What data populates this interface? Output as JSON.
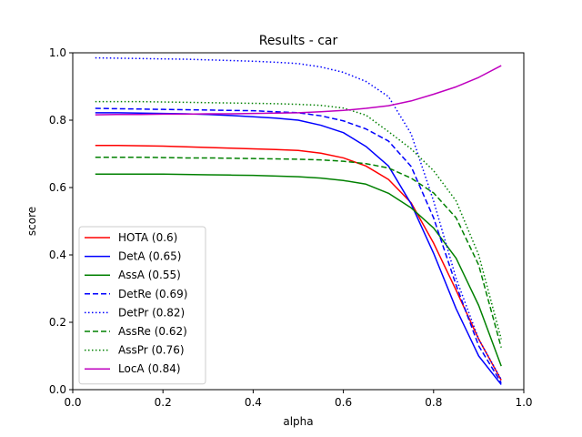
{
  "chart_data": {
    "type": "line",
    "title": "Results - car",
    "xlabel": "alpha",
    "ylabel": "score",
    "xlim": [
      0.0,
      1.0
    ],
    "ylim": [
      0.0,
      1.0
    ],
    "xticks": [
      "0.0",
      "0.2",
      "0.4",
      "0.6",
      "0.8",
      "1.0"
    ],
    "yticks": [
      "0.0",
      "0.2",
      "0.4",
      "0.6",
      "0.8",
      "1.0"
    ],
    "grid": false,
    "legend_position": "lower-left",
    "x": [
      0.05,
      0.1,
      0.15,
      0.2,
      0.25,
      0.3,
      0.35,
      0.4,
      0.45,
      0.5,
      0.55,
      0.6,
      0.65,
      0.7,
      0.75,
      0.8,
      0.85,
      0.9,
      0.95
    ],
    "series": [
      {
        "name": "HOTA (0.6)",
        "color": "#ff0000",
        "dash": "solid",
        "values": [
          0.725,
          0.725,
          0.724,
          0.723,
          0.721,
          0.719,
          0.717,
          0.715,
          0.713,
          0.71,
          0.702,
          0.688,
          0.664,
          0.624,
          0.555,
          0.435,
          0.295,
          0.15,
          0.028
        ]
      },
      {
        "name": "DetA (0.65)",
        "color": "#0000ff",
        "dash": "solid",
        "values": [
          0.822,
          0.822,
          0.821,
          0.82,
          0.819,
          0.817,
          0.814,
          0.81,
          0.806,
          0.8,
          0.785,
          0.763,
          0.722,
          0.664,
          0.552,
          0.405,
          0.24,
          0.1,
          0.015
        ]
      },
      {
        "name": "AssA (0.55)",
        "color": "#008000",
        "dash": "solid",
        "values": [
          0.64,
          0.64,
          0.64,
          0.64,
          0.639,
          0.638,
          0.637,
          0.636,
          0.634,
          0.632,
          0.628,
          0.621,
          0.61,
          0.583,
          0.54,
          0.48,
          0.39,
          0.25,
          0.07
        ]
      },
      {
        "name": "DetRe (0.69)",
        "color": "#0000ff",
        "dash": "dashed",
        "values": [
          0.835,
          0.834,
          0.833,
          0.832,
          0.831,
          0.83,
          0.829,
          0.828,
          0.825,
          0.822,
          0.813,
          0.798,
          0.774,
          0.738,
          0.663,
          0.51,
          0.31,
          0.13,
          0.02
        ]
      },
      {
        "name": "DetPr (0.82)",
        "color": "#0000ff",
        "dash": "dotted",
        "values": [
          0.985,
          0.984,
          0.983,
          0.982,
          0.981,
          0.979,
          0.977,
          0.975,
          0.972,
          0.968,
          0.958,
          0.942,
          0.915,
          0.87,
          0.76,
          0.56,
          0.33,
          0.15,
          0.03
        ]
      },
      {
        "name": "AssRe (0.62)",
        "color": "#008000",
        "dash": "dashed",
        "values": [
          0.69,
          0.69,
          0.69,
          0.689,
          0.688,
          0.688,
          0.687,
          0.686,
          0.685,
          0.684,
          0.682,
          0.678,
          0.671,
          0.658,
          0.628,
          0.584,
          0.51,
          0.37,
          0.125
        ]
      },
      {
        "name": "AssPr (0.76)",
        "color": "#008000",
        "dash": "dotted",
        "values": [
          0.855,
          0.855,
          0.855,
          0.854,
          0.853,
          0.852,
          0.851,
          0.85,
          0.849,
          0.847,
          0.844,
          0.836,
          0.815,
          0.766,
          0.715,
          0.65,
          0.56,
          0.4,
          0.15
        ]
      },
      {
        "name": "LocA (0.84)",
        "color": "#bf00bf",
        "dash": "solid",
        "values": [
          0.816,
          0.817,
          0.817,
          0.818,
          0.818,
          0.819,
          0.819,
          0.82,
          0.821,
          0.822,
          0.825,
          0.829,
          0.835,
          0.843,
          0.857,
          0.877,
          0.899,
          0.927,
          0.962
        ]
      }
    ]
  }
}
